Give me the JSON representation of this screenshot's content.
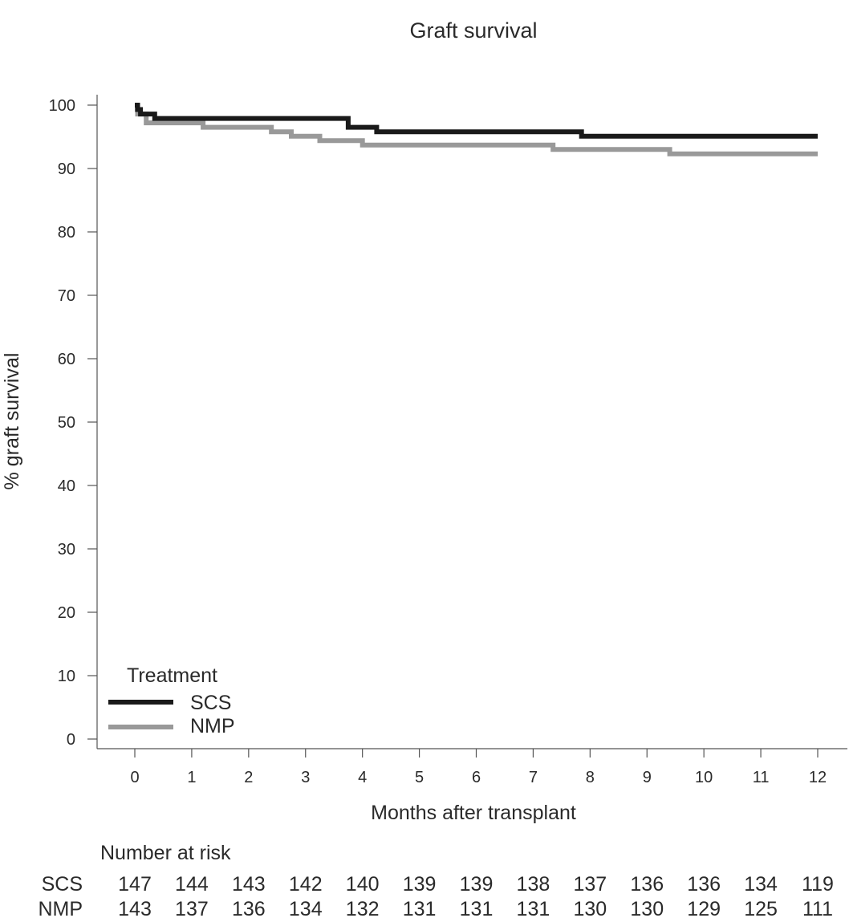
{
  "chart_data": {
    "type": "line",
    "title": "Graft survival",
    "xlabel": "Months after transplant",
    "ylabel": "% graft survival",
    "xlim": [
      0,
      12
    ],
    "ylim": [
      0,
      100
    ],
    "x_ticks": [
      0,
      1,
      2,
      3,
      4,
      5,
      6,
      7,
      8,
      9,
      10,
      11,
      12
    ],
    "y_ticks": [
      0,
      10,
      20,
      30,
      40,
      50,
      60,
      70,
      80,
      90,
      100
    ],
    "grid": false,
    "legend": {
      "title": "Treatment",
      "placement": "bottom-left"
    },
    "series": [
      {
        "name": "SCS",
        "color": "#1a1a1a",
        "step": true,
        "x": [
          0,
          0.05,
          0.1,
          0.35,
          3.7,
          3.75,
          4.25,
          7.85,
          12
        ],
        "y": [
          100,
          99.3,
          98.6,
          97.9,
          97.9,
          96.5,
          95.8,
          95.1,
          95.1
        ]
      },
      {
        "name": "NMP",
        "color": "#999999",
        "step": true,
        "x": [
          0,
          0.05,
          0.2,
          1.2,
          2.4,
          2.75,
          3.25,
          4.0,
          7.35,
          9.4,
          12
        ],
        "y": [
          99.3,
          98.6,
          97.2,
          96.5,
          95.8,
          95.1,
          94.4,
          93.7,
          93.0,
          92.3,
          92.3
        ]
      }
    ],
    "risk_table": {
      "title": "Number at risk",
      "rows": [
        {
          "label": "SCS",
          "values": [
            "147",
            "144",
            "143",
            "142",
            "140",
            "139",
            "139",
            "138",
            "137",
            "136",
            "136",
            "134",
            "119"
          ]
        },
        {
          "label": "NMP",
          "values": [
            "143",
            "137",
            "136",
            "134",
            "132",
            "131",
            "131",
            "131",
            "130",
            "130",
            "129",
            "125",
            "111"
          ]
        }
      ]
    }
  }
}
